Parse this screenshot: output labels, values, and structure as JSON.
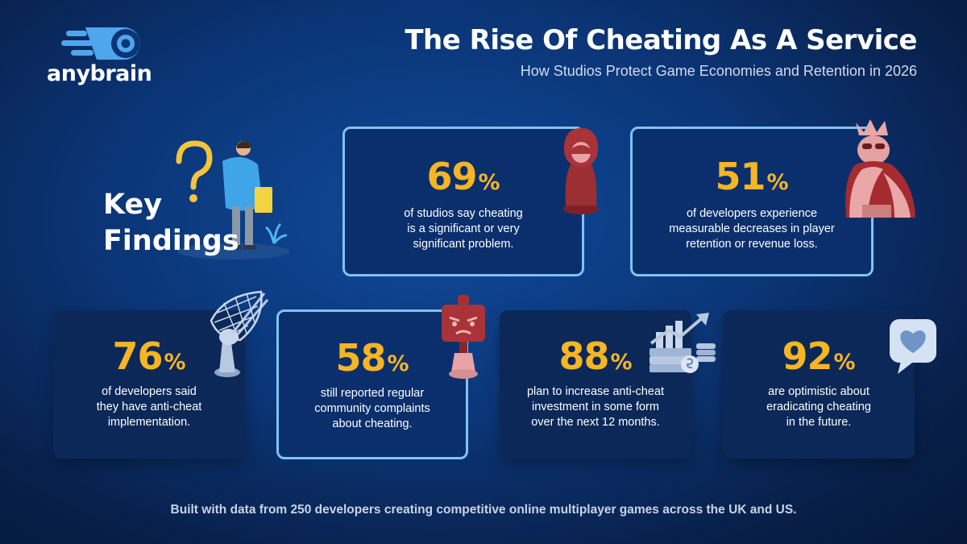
{
  "logo": {
    "text": "anybrain",
    "icon": "comet-logo-icon"
  },
  "header": {
    "title": "The Rise Of Cheating As A Service",
    "subtitle": "How Studios Protect Game Economies and Retention in 2026"
  },
  "key_findings": {
    "line1": "Key",
    "line2": "Findings",
    "illustration": "confused-person-question-mark-icon"
  },
  "stats": [
    {
      "value": "69",
      "unit": "%",
      "lines": [
        "of studios say cheating",
        "is a significant or very",
        "significant problem."
      ],
      "icon": "hooded-pawn-icon"
    },
    {
      "value": "51",
      "unit": "%",
      "lines": [
        "of developers experience",
        "measurable decreases in player",
        "retention or revenue loss."
      ],
      "icon": "crowned-king-icon"
    },
    {
      "value": "76",
      "unit": "%",
      "lines": [
        "of developers said",
        "they have anti-cheat",
        "implementation."
      ],
      "icon": "net-shield-icon"
    },
    {
      "value": "58",
      "unit": "%",
      "lines": [
        "still reported regular",
        "community complaints",
        "about cheating."
      ],
      "icon": "angry-robot-icon"
    },
    {
      "value": "88",
      "unit": "%",
      "lines": [
        "plan to increase anti-cheat",
        "investment in some form",
        "over the next 12 months."
      ],
      "icon": "money-growth-chart-icon"
    },
    {
      "value": "92",
      "unit": "%",
      "lines": [
        "are optimistic about",
        "eradicating cheating",
        "in the future."
      ],
      "icon": "heart-speech-bubble-icon"
    }
  ],
  "footer": "Built with data from 250 developers creating competitive online multiplayer games across the UK and US.",
  "colors": {
    "accent": "#f6b523",
    "card_border": "#7fc3f3",
    "background": "#0b3576"
  }
}
